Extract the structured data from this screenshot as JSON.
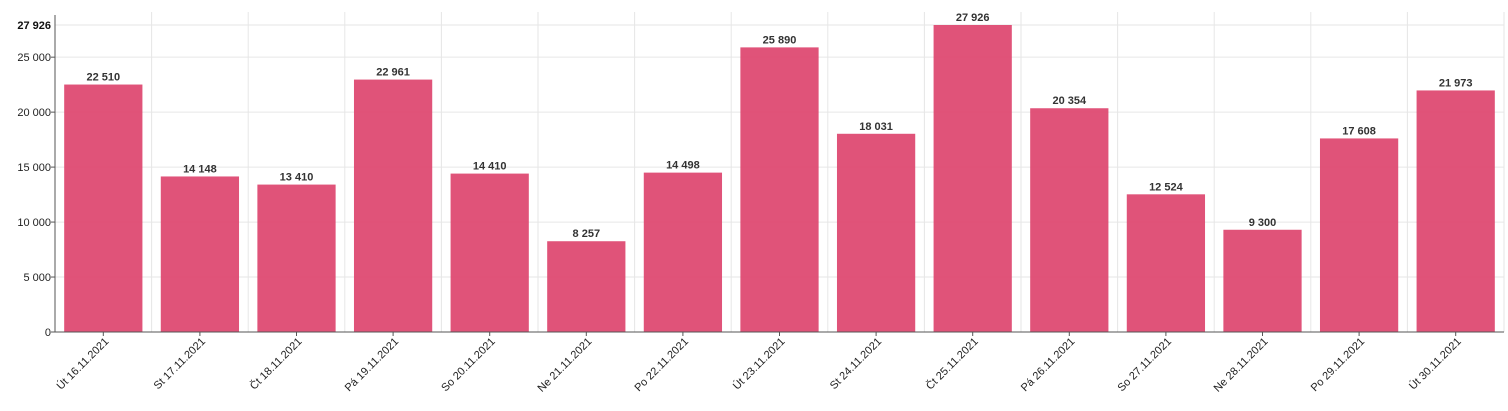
{
  "chart_data": {
    "type": "bar",
    "categories": [
      "Út 16.11.2021",
      "St 17.11.2021",
      "Čt 18.11.2021",
      "Pá 19.11.2021",
      "So 20.11.2021",
      "Ne 21.11.2021",
      "Po 22.11.2021",
      "Út 23.11.2021",
      "St 24.11.2021",
      "Čt 25.11.2021",
      "Pá 26.11.2021",
      "So 27.11.2021",
      "Ne 28.11.2021",
      "Po 29.11.2021",
      "Út 30.11.2021"
    ],
    "values": [
      22510,
      14148,
      13410,
      22961,
      14410,
      8257,
      14498,
      25890,
      18031,
      27926,
      20354,
      12524,
      9300,
      17608,
      21973
    ],
    "value_labels": [
      "22 510",
      "14 148",
      "13 410",
      "22 961",
      "14 410",
      "8 257",
      "14 498",
      "25 890",
      "18 031",
      "27 926",
      "20 354",
      "12 524",
      "9 300",
      "17 608",
      "21 973"
    ],
    "y_ticks": [
      0,
      5000,
      10000,
      15000,
      20000,
      25000
    ],
    "y_tick_labels": [
      "0",
      "5 000",
      "10 000",
      "15 000",
      "20 000",
      "25 000"
    ],
    "y_max_label": "27 926",
    "ylim": [
      0,
      27926
    ],
    "grid": true,
    "legend": "none",
    "colors": {
      "bar": "#de4a72"
    }
  }
}
